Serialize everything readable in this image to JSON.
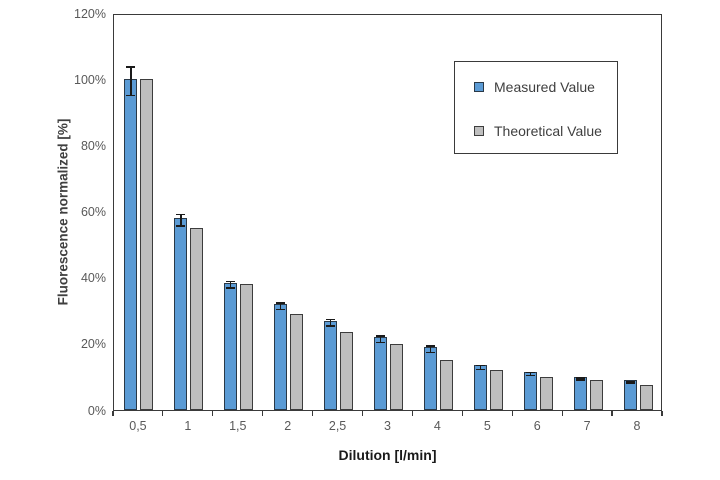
{
  "chart_data": {
    "type": "bar",
    "title": "",
    "xlabel": "Dilution [l/min]",
    "ylabel": "Fluorescence normalized [%]",
    "categories": [
      "0,5",
      "1",
      "1,5",
      "2",
      "2,5",
      "3",
      "4",
      "5",
      "6",
      "7",
      "8"
    ],
    "series": [
      {
        "name": "Measured Value",
        "values": [
          100,
          58,
          38.5,
          32,
          27,
          22,
          19,
          13.5,
          11.5,
          10,
          9
        ],
        "errors": [
          4.5,
          2,
          1.2,
          1.2,
          1.2,
          1.2,
          1.2,
          0.8,
          0.6,
          0.5,
          0.5
        ],
        "fill_color": "#5b9bd5",
        "border_color": "#2a3947"
      },
      {
        "name": "Theoretical Value",
        "values": [
          100,
          55,
          38,
          29,
          23.5,
          20,
          15,
          12,
          10,
          9,
          7.5
        ],
        "errors": null,
        "fill_color": "#bfbfbf",
        "border_color": "#3d3d3d"
      }
    ],
    "ylim": [
      0,
      120
    ],
    "yticks": [
      0,
      20,
      40,
      60,
      80,
      100,
      120
    ],
    "ytick_labels": [
      "0%",
      "20%",
      "40%",
      "60%",
      "80%",
      "100%",
      "120%"
    ],
    "grid": false,
    "error_bars": true,
    "error_bar_color": "#1a1a1a",
    "legend_position": "top-right",
    "plot_border_color": "#3a3a3a",
    "tick_label_color": "#595959"
  }
}
